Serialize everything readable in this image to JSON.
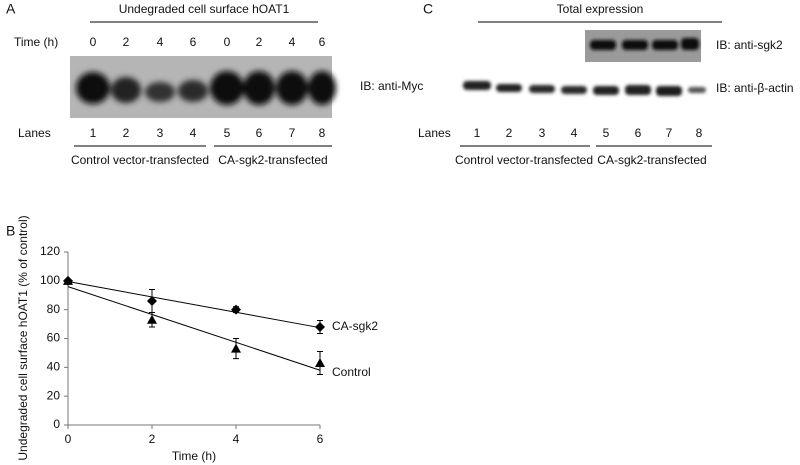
{
  "panel_a": {
    "letter": "A",
    "title": "Undegraded cell surface hOAT1",
    "time_label": "Time (h)",
    "times": [
      "0",
      "2",
      "4",
      "6",
      "0",
      "2",
      "4",
      "6"
    ],
    "ib_label": "IB: anti-Myc",
    "lanes_label": "Lanes",
    "lanes": [
      "1",
      "2",
      "3",
      "4",
      "5",
      "6",
      "7",
      "8"
    ],
    "group_labels": [
      "Control vector-transfected",
      "CA-sgk2-transfected"
    ]
  },
  "panel_c": {
    "letter": "C",
    "title": "Total expression",
    "ib_labels": [
      "IB: anti-sgk2",
      "IB: anti-β-actin"
    ],
    "lanes_label": "Lanes",
    "lanes": [
      "1",
      "2",
      "3",
      "4",
      "5",
      "6",
      "7",
      "8"
    ],
    "group_labels": [
      "Control vector-transfected",
      "CA-sgk2-transfected"
    ]
  },
  "chart_data": {
    "type": "scatter",
    "letter": "B",
    "xlabel": "Time (h)",
    "ylabel": "Undegraded cell surface hOAT1 (% of control)",
    "x": [
      0,
      2,
      4,
      6
    ],
    "series": [
      {
        "name": "CA-sgk2",
        "color": "#000000",
        "marker": "diamond",
        "values": [
          100,
          86,
          80,
          68
        ],
        "errors": [
          0,
          8,
          2,
          4.5
        ],
        "trend_values": [
          99.5,
          67.5
        ]
      },
      {
        "name": "Control",
        "color": "#000000",
        "marker": "triangle",
        "values": [
          100,
          73,
          53,
          43
        ],
        "errors": [
          0,
          5,
          7,
          8
        ],
        "trend_values": [
          96,
          38
        ]
      }
    ],
    "xlim": [
      0,
      6
    ],
    "xticks": [
      0,
      2,
      4,
      6
    ],
    "ylim": [
      0,
      120
    ],
    "yticks": [
      0,
      20,
      40,
      60,
      80,
      100,
      120
    ]
  }
}
